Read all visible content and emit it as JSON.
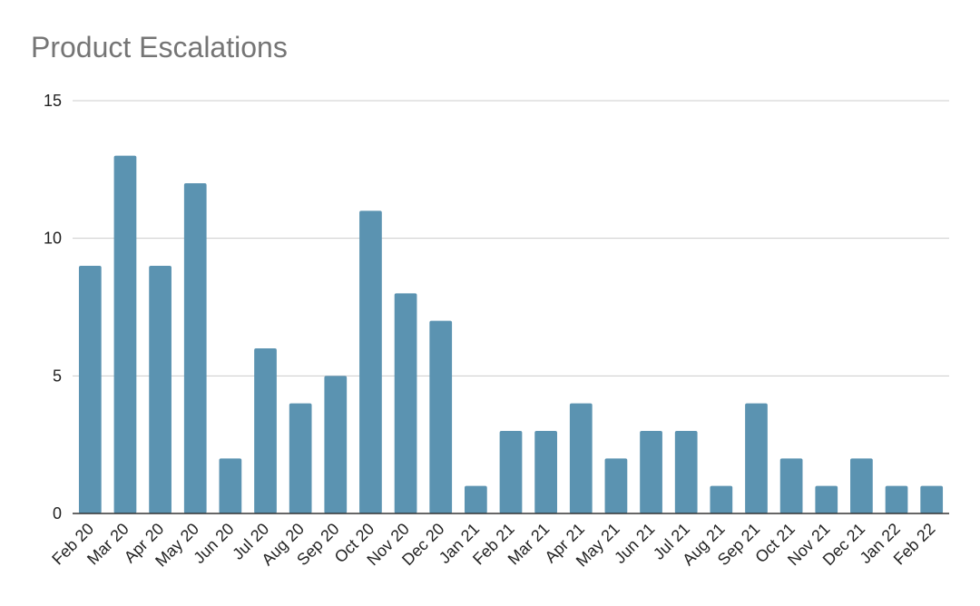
{
  "chart_data": {
    "type": "bar",
    "title": "Product Escalations",
    "xlabel": "",
    "ylabel": "",
    "ylim": [
      0,
      15
    ],
    "yticks": [
      0,
      5,
      10,
      15
    ],
    "grid": true,
    "legend": "none",
    "bar_color": "#5b93b1",
    "categories": [
      "Feb 20",
      "Mar 20",
      "Apr 20",
      "May 20",
      "Jun 20",
      "Jul 20",
      "Aug 20",
      "Sep 20",
      "Oct 20",
      "Nov 20",
      "Dec 20",
      "Jan 21",
      "Feb 21",
      "Mar 21",
      "Apr 21",
      "May 21",
      "Jun 21",
      "Jul 21",
      "Aug 21",
      "Sep 21",
      "Oct 21",
      "Nov 21",
      "Dec 21",
      "Jan 22",
      "Feb 22"
    ],
    "values": [
      9,
      13,
      9,
      12,
      2,
      6,
      4,
      5,
      11,
      8,
      7,
      1,
      3,
      3,
      4,
      2,
      3,
      3,
      1,
      4,
      2,
      1,
      2,
      1,
      1
    ]
  }
}
